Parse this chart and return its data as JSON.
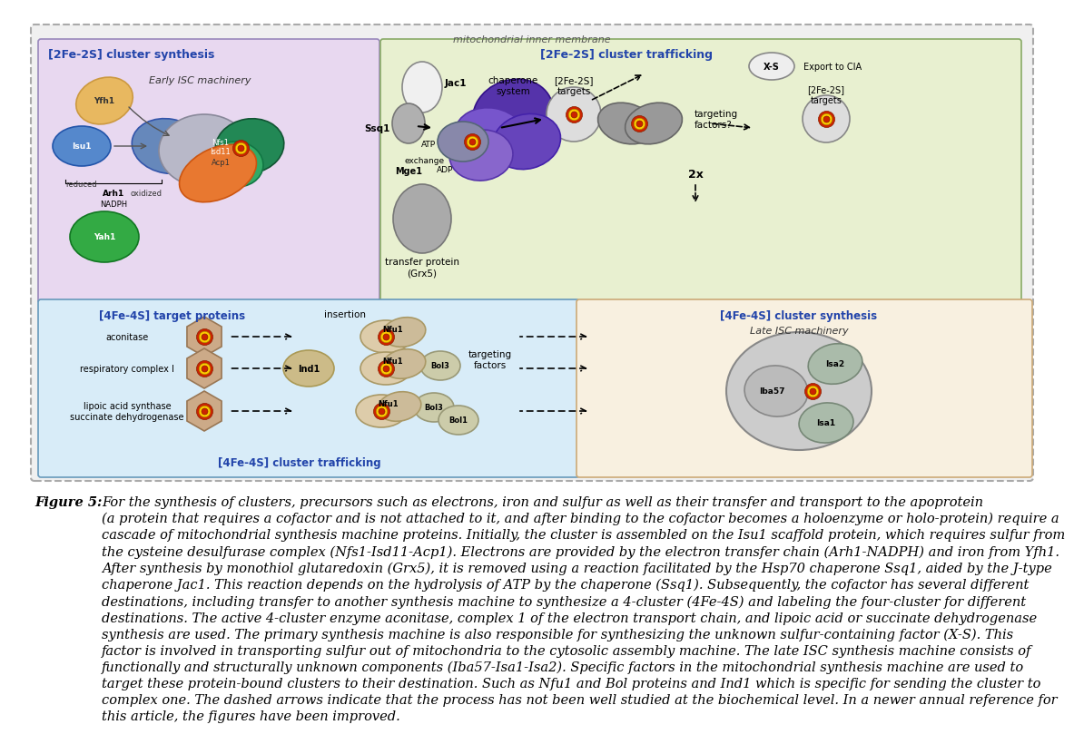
{
  "fig_width": 11.52,
  "fig_height": 8.12,
  "dpi": 100,
  "white_bg": "#ffffff",
  "diagram_top_label": "mitochondrial inner membrane",
  "outer_bg": "#f0f0f0",
  "outer_border": "#aaaaaa",
  "top_left_bg": "#e8d8f0",
  "top_right_bg": "#e8f0d8",
  "bottom_left_bg": "#d8ecf8",
  "bottom_right_bg": "#f8f0e0",
  "section_labels": {
    "top_left": "[2Fe-2S] cluster synthesis",
    "top_right": "[2Fe-2S] cluster trafficking",
    "bottom_left_inner": "[4Fe-4S] target proteins",
    "bottom_center": "[4Fe-4S] cluster trafficking",
    "bottom_right": "[4Fe-4S] cluster synthesis",
    "late_isc": "Late ISC machinery",
    "early_isc": "Early ISC machinery"
  },
  "caption_bold_label": "Figure 5:",
  "caption_text": "For the synthesis of clusters, precursors such as electrons, iron and sulfur as well as their transfer and transport to the apoprotein\n(a protein that requires a cofactor and is not attached to it, and after binding to the cofactor becomes a holoenzyme or holo-protein) require a\ncascade of mitochondrial synthesis machine proteins. Initially, the cluster is assembled on the Isu1 scaffold protein, which requires sulfur from\nthe cysteine desulfurase complex (Nfs1-Isd11-Acp1). Electrons are provided by the electron transfer chain (Arh1-NADPH) and iron from Yfh1.\nAfter synthesis by monothiol glutaredoxin (Grx5), it is removed using a reaction facilitated by the Hsp70 chaperone Ssq1, aided by the J-type\nchaperone Jac1. This reaction depends on the hydrolysis of ATP by the chaperone (Ssq1). Subsequently, the cofactor has several different\ndestinations, including transfer to another synthesis machine to synthesize a 4-cluster (4Fe-4S) and labeling the four-cluster for different\ndestinations. The active 4-cluster enzyme aconitase, complex 1 of the electron transport chain, and lipoic acid or succinate dehydrogenase\nsynthesis are used. The primary synthesis machine is also responsible for synthesizing the unknown sulfur-containing factor (X-S). This\nfactor is involved in transporting sulfur out of mitochondria to the cytosolic assembly machine. The late ISC synthesis machine consists of\nfunctionally and structurally unknown components (Iba57-Isa1-Isa2). Specific factors in the mitochondrial synthesis machine are used to\ntarget these protein-bound clusters to their destination. Such as Nfu1 and Bol proteins and Ind1 which is specific for sending the cluster to\ncomplex one. The dashed arrows indicate that the process has not been well studied at the biochemical level. In a newer annual reference for\nthis article, the figures have been improved.",
  "caption_font_size": 10.5
}
